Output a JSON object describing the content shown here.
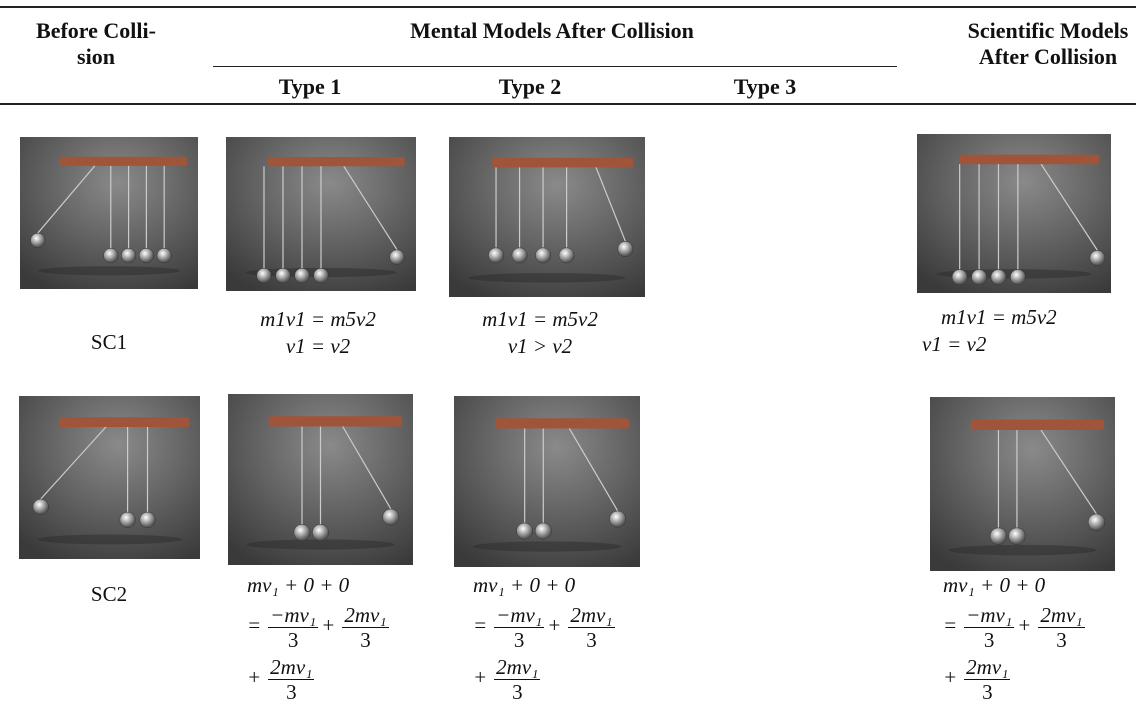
{
  "header": {
    "before": [
      "Before Colli-",
      "sion"
    ],
    "mental": "Mental Models After Collision",
    "types": [
      "Type 1",
      "Type 2",
      "Type 3"
    ],
    "scientific": [
      "Scientific Models",
      "After Collision"
    ]
  },
  "rows": [
    {
      "label": "SC1",
      "type1": [
        "m1v1 = m5v2",
        "v1 = v2"
      ],
      "type2": [
        "m1v1 = m5v2",
        "v1 > v2"
      ],
      "scientific": [
        "m1v1 = m5v2",
        "v1 = v2"
      ]
    },
    {
      "label": "SC2",
      "type1": {
        "first": "mv₁ + 0 + 0",
        "terms": [
          {
            "sign": "=",
            "num": "−mv₁",
            "den": "3"
          },
          {
            "sign": "+",
            "num": "2mv₁",
            "den": "3"
          },
          {
            "sign": "+",
            "num": "2mv₁",
            "den": "3"
          }
        ]
      },
      "type2": {
        "first": "mv₁ + 0 + 0",
        "terms": [
          {
            "sign": "=",
            "num": "−mv₁",
            "den": "3"
          },
          {
            "sign": "+",
            "num": "2mv₁",
            "den": "3"
          },
          {
            "sign": "+",
            "num": "2mv₁",
            "den": "3"
          }
        ]
      },
      "scientific": {
        "first": "mv₁ + 0 + 0",
        "terms": [
          {
            "sign": "=",
            "num": "−mv₁",
            "den": "3"
          },
          {
            "sign": "+",
            "num": "2mv₁",
            "den": "3"
          },
          {
            "sign": "+",
            "num": "2mv₁",
            "den": "3"
          }
        ]
      }
    }
  ]
}
